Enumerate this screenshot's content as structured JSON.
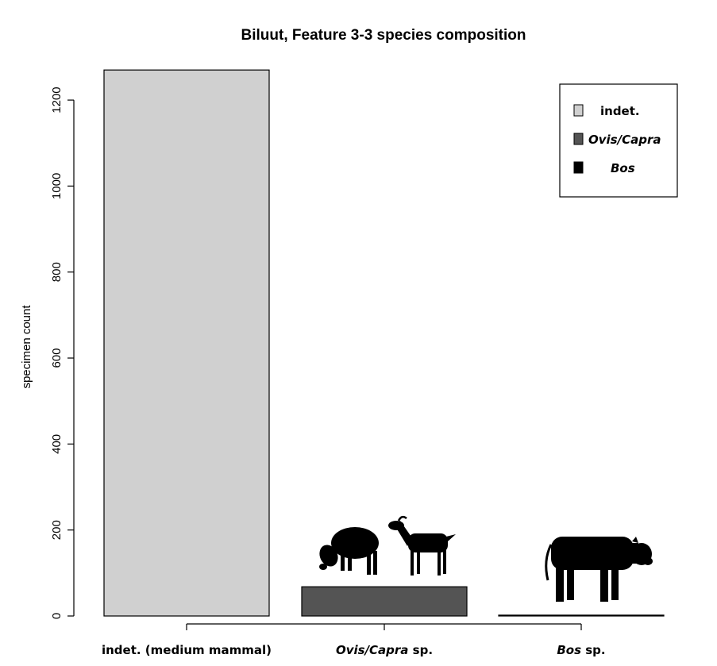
{
  "chart_data": {
    "type": "bar",
    "title": "Biluut, Feature 3-3 species composition",
    "xlabel": "",
    "ylabel": "specimen count",
    "ylim": [
      0,
      1270
    ],
    "yticks": [
      "0",
      "200",
      "400",
      "600",
      "800",
      "1000",
      "1200"
    ],
    "categories": [
      {
        "italic": "",
        "plain": "indet. (medium mammal)"
      },
      {
        "italic": "Ovis/Capra",
        "plain": " sp."
      },
      {
        "italic": "Bos",
        "plain": " sp."
      }
    ],
    "values": [
      1270,
      68,
      2
    ],
    "colors": [
      "#d0d0d0",
      "#545454",
      "#000000"
    ],
    "grid": false,
    "legend": {
      "position": "top-right",
      "entries": [
        {
          "label": "indet.",
          "italic": false,
          "color": "#d0d0d0"
        },
        {
          "label": "Ovis/Capra",
          "italic": true,
          "color": "#545454"
        },
        {
          "label": "Bos",
          "italic": true,
          "color": "#000000"
        }
      ]
    },
    "icons": [
      "sheep-icon",
      "goat-icon",
      "cattle-icon"
    ]
  }
}
